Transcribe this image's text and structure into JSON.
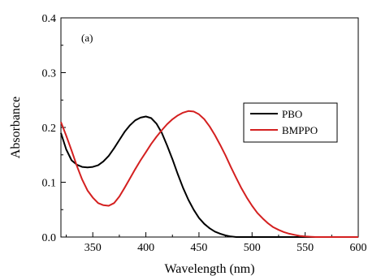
{
  "chart_data": {
    "type": "line",
    "title": "",
    "xlabel": "Wavelength (nm)",
    "ylabel": "Absorbance",
    "xlim": [
      320,
      600
    ],
    "ylim": [
      0.0,
      0.4
    ],
    "x_ticks": [
      350,
      400,
      450,
      500,
      550,
      600
    ],
    "x_tick_labels": [
      "350",
      "400",
      "450",
      "500",
      "550",
      "600"
    ],
    "y_ticks": [
      0.0,
      0.1,
      0.2,
      0.3,
      0.4
    ],
    "y_tick_labels": [
      "0.0",
      "0.1",
      "0.2",
      "0.3",
      "0.4"
    ],
    "grid": false,
    "legend_position": "middle-right",
    "annotation": "(a)",
    "series": [
      {
        "name": "PBO",
        "color": "#000000",
        "points": [
          [
            320,
            0.19
          ],
          [
            325,
            0.16
          ],
          [
            330,
            0.14
          ],
          [
            335,
            0.132
          ],
          [
            340,
            0.128
          ],
          [
            345,
            0.127
          ],
          [
            350,
            0.128
          ],
          [
            355,
            0.131
          ],
          [
            360,
            0.138
          ],
          [
            365,
            0.148
          ],
          [
            370,
            0.162
          ],
          [
            375,
            0.177
          ],
          [
            380,
            0.192
          ],
          [
            385,
            0.204
          ],
          [
            390,
            0.213
          ],
          [
            395,
            0.218
          ],
          [
            400,
            0.22
          ],
          [
            405,
            0.217
          ],
          [
            410,
            0.207
          ],
          [
            415,
            0.19
          ],
          [
            420,
            0.167
          ],
          [
            425,
            0.142
          ],
          [
            430,
            0.115
          ],
          [
            435,
            0.09
          ],
          [
            440,
            0.068
          ],
          [
            445,
            0.05
          ],
          [
            450,
            0.035
          ],
          [
            455,
            0.024
          ],
          [
            460,
            0.016
          ],
          [
            465,
            0.01
          ],
          [
            470,
            0.006
          ],
          [
            475,
            0.003
          ],
          [
            480,
            0.001
          ],
          [
            485,
            0.0
          ],
          [
            490,
            0.0
          ],
          [
            500,
            0.0
          ],
          [
            520,
            0.0
          ],
          [
            550,
            0.0
          ],
          [
            580,
            0.0
          ],
          [
            600,
            0.0
          ]
        ]
      },
      {
        "name": "BMPPO",
        "color": "#d42020",
        "points": [
          [
            320,
            0.21
          ],
          [
            325,
            0.185
          ],
          [
            330,
            0.158
          ],
          [
            335,
            0.13
          ],
          [
            340,
            0.105
          ],
          [
            345,
            0.085
          ],
          [
            350,
            0.072
          ],
          [
            355,
            0.062
          ],
          [
            360,
            0.058
          ],
          [
            365,
            0.057
          ],
          [
            370,
            0.062
          ],
          [
            375,
            0.074
          ],
          [
            380,
            0.09
          ],
          [
            385,
            0.107
          ],
          [
            390,
            0.124
          ],
          [
            395,
            0.14
          ],
          [
            400,
            0.155
          ],
          [
            405,
            0.17
          ],
          [
            410,
            0.183
          ],
          [
            415,
            0.195
          ],
          [
            420,
            0.206
          ],
          [
            425,
            0.215
          ],
          [
            430,
            0.222
          ],
          [
            435,
            0.227
          ],
          [
            440,
            0.23
          ],
          [
            445,
            0.229
          ],
          [
            450,
            0.224
          ],
          [
            455,
            0.215
          ],
          [
            460,
            0.202
          ],
          [
            465,
            0.186
          ],
          [
            470,
            0.168
          ],
          [
            475,
            0.149
          ],
          [
            480,
            0.128
          ],
          [
            485,
            0.108
          ],
          [
            490,
            0.089
          ],
          [
            495,
            0.072
          ],
          [
            500,
            0.057
          ],
          [
            505,
            0.044
          ],
          [
            510,
            0.034
          ],
          [
            515,
            0.025
          ],
          [
            520,
            0.018
          ],
          [
            525,
            0.013
          ],
          [
            530,
            0.009
          ],
          [
            535,
            0.006
          ],
          [
            540,
            0.004
          ],
          [
            545,
            0.002
          ],
          [
            550,
            0.001
          ],
          [
            560,
            0.0
          ],
          [
            580,
            0.0
          ],
          [
            600,
            0.0
          ]
        ]
      }
    ]
  }
}
